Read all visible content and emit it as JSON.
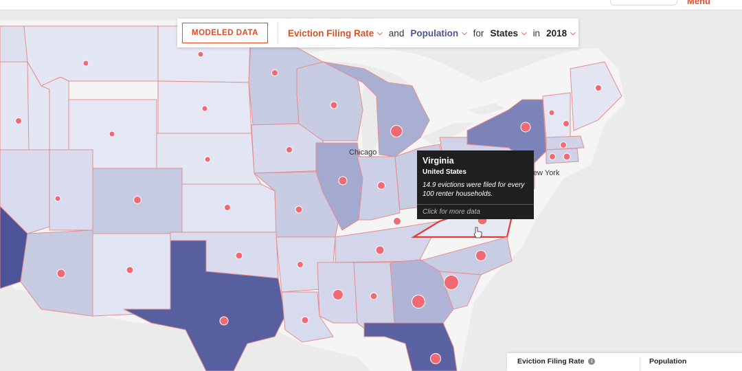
{
  "header": {
    "link_label": "Menu"
  },
  "query_bar": {
    "modeled_button": "MODELED DATA",
    "metric_primary": "Eviction Filing Rate",
    "conj_and": "and",
    "metric_secondary": "Population",
    "conj_for": "for",
    "region_type": "States",
    "conj_in": "in",
    "year": "2018"
  },
  "tooltip": {
    "title": "Virginia",
    "subtitle": "United States",
    "description": "14.9 evictions were filed for every 100 renter households.",
    "cta": "Click for more data"
  },
  "map": {
    "city_labels": [
      "Chicago",
      "New York"
    ],
    "colors": {
      "water": "#ebebeb",
      "land": "#f5f5f5",
      "border": "#e68d8d",
      "highlight_border": "#e53935",
      "circle_fill": "#f16a73",
      "choropleth_light": "#e3e6f3",
      "choropleth_mid": "#bfc3de",
      "choropleth_dark": "#59609e"
    }
  },
  "legend": {
    "rate_label": "Eviction Filing Rate",
    "population_label": "Population",
    "info_icon": "i"
  }
}
